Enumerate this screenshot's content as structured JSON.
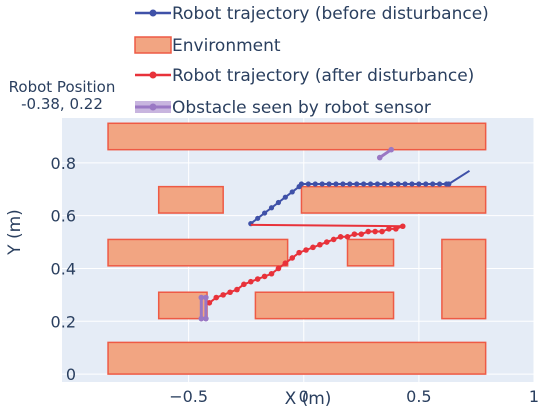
{
  "colors": {
    "plot_bg": "#e5ecf6",
    "grid": "#ffffff",
    "text": "#2a3f5f",
    "trajectory_before": "#3f51a8",
    "trajectory_after": "#e8323a",
    "environment_fill": "#f2a582",
    "environment_stroke": "#ee5a45",
    "obstacle": "#9a78c4"
  },
  "robot_position": {
    "label": "Robot Position",
    "value": "-0.38, 0.22"
  },
  "chart_data": {
    "type": "scatter",
    "xlabel": "X (m)",
    "ylabel": "Y (m)",
    "xlim": [
      -1.05,
      1.0
    ],
    "ylim": [
      -0.03,
      0.97
    ],
    "xticks": [
      -0.5,
      0,
      0.5,
      1
    ],
    "xtick_labels": [
      "−0.5",
      "0",
      "0.5",
      "1"
    ],
    "yticks": [
      0,
      0.2,
      0.4,
      0.6,
      0.8
    ],
    "ytick_labels": [
      "0",
      "0.2",
      "0.4",
      "0.6",
      "0.8"
    ],
    "grid": true,
    "legend": {
      "placement": "top",
      "entries": [
        "Robot trajectory (before disturbance)",
        "Environment",
        "Robot trajectory (after disturbance)",
        "Obstacle seen by robot sensor"
      ]
    },
    "environment": [
      {
        "x0": -0.85,
        "x1": 0.79,
        "y0": 0.0,
        "y1": 0.12
      },
      {
        "x0": -0.63,
        "x1": -0.42,
        "y0": 0.21,
        "y1": 0.31
      },
      {
        "x0": -0.21,
        "x1": 0.39,
        "y0": 0.21,
        "y1": 0.31
      },
      {
        "x0": 0.6,
        "x1": 0.79,
        "y0": 0.21,
        "y1": 0.51
      },
      {
        "x0": -0.85,
        "x1": -0.07,
        "y0": 0.41,
        "y1": 0.51
      },
      {
        "x0": 0.19,
        "x1": 0.39,
        "y0": 0.41,
        "y1": 0.51
      },
      {
        "x0": -0.63,
        "x1": -0.35,
        "y0": 0.61,
        "y1": 0.71
      },
      {
        "x0": -0.01,
        "x1": 0.79,
        "y0": 0.61,
        "y1": 0.71
      },
      {
        "x0": -0.85,
        "x1": 0.79,
        "y0": 0.85,
        "y1": 0.95
      }
    ],
    "series": [
      {
        "name": "Robot trajectory (before disturbance)",
        "color": "#3f51a8",
        "marker_until_x": 0.63,
        "x": [
          -0.23,
          -0.2,
          -0.17,
          -0.14,
          -0.11,
          -0.08,
          -0.05,
          -0.02,
          -0.01,
          0.02,
          0.05,
          0.08,
          0.11,
          0.14,
          0.17,
          0.2,
          0.23,
          0.26,
          0.29,
          0.32,
          0.35,
          0.38,
          0.41,
          0.44,
          0.47,
          0.5,
          0.53,
          0.56,
          0.59,
          0.62,
          0.63,
          0.72
        ],
        "y": [
          0.57,
          0.59,
          0.61,
          0.63,
          0.65,
          0.67,
          0.69,
          0.71,
          0.72,
          0.72,
          0.72,
          0.72,
          0.72,
          0.72,
          0.72,
          0.72,
          0.72,
          0.72,
          0.72,
          0.72,
          0.72,
          0.72,
          0.72,
          0.72,
          0.72,
          0.72,
          0.72,
          0.72,
          0.72,
          0.72,
          0.72,
          0.77
        ]
      },
      {
        "name": "Robot trajectory (after disturbance)",
        "color": "#e8323a",
        "x": [
          -0.41,
          -0.38,
          -0.35,
          -0.32,
          -0.29,
          -0.26,
          -0.23,
          -0.2,
          -0.17,
          -0.14,
          -0.11,
          -0.08,
          -0.05,
          -0.02,
          0.01,
          0.04,
          0.07,
          0.1,
          0.13,
          0.16,
          0.19,
          0.22,
          0.25,
          0.28,
          0.31,
          0.34,
          0.37,
          0.4,
          0.43
        ],
        "y": [
          0.27,
          0.29,
          0.3,
          0.31,
          0.32,
          0.34,
          0.35,
          0.36,
          0.37,
          0.38,
          0.4,
          0.42,
          0.44,
          0.46,
          0.47,
          0.48,
          0.49,
          0.5,
          0.51,
          0.52,
          0.52,
          0.53,
          0.53,
          0.54,
          0.54,
          0.54,
          0.55,
          0.55,
          0.56
        ]
      },
      {
        "name": "disturbance jump",
        "color": "#e8323a",
        "x": [
          -0.23,
          0.43
        ],
        "y": [
          0.565,
          0.56
        ]
      },
      {
        "name": "Obstacle seen by robot sensor",
        "color": "#9a78c4",
        "segments": [
          {
            "x": [
              -0.445,
              -0.445
            ],
            "y": [
              0.21,
              0.29
            ]
          },
          {
            "x": [
              -0.425,
              -0.425
            ],
            "y": [
              0.21,
              0.29
            ]
          },
          {
            "x": [
              0.33,
              0.38
            ],
            "y": [
              0.82,
              0.85
            ]
          }
        ]
      }
    ]
  }
}
